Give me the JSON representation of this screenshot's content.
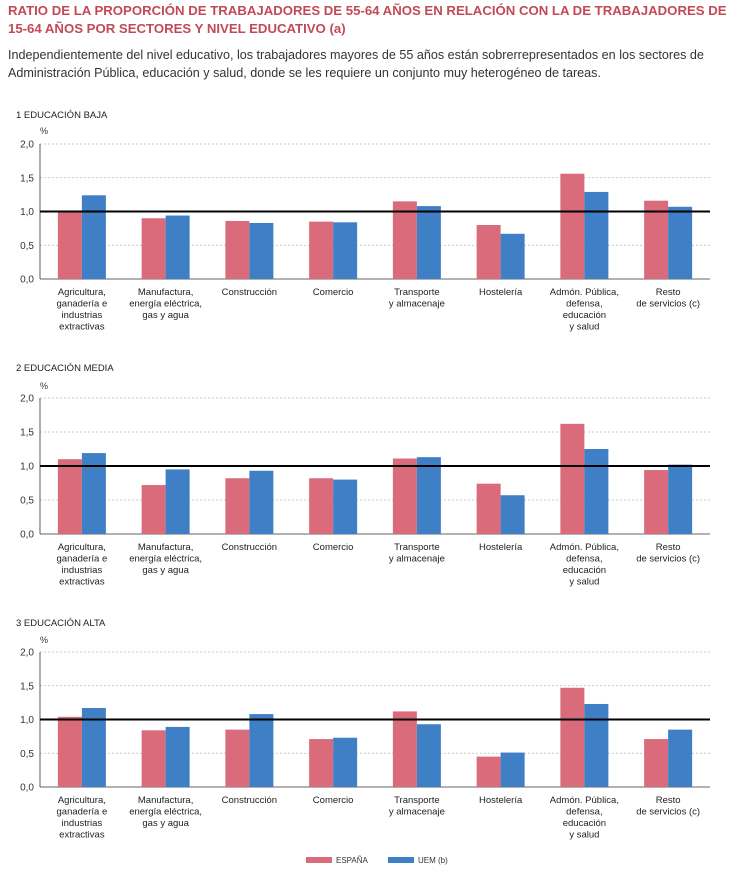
{
  "title": "RATIO DE LA PROPORCIÓN DE TRABAJADORES DE 55-64 AÑOS EN RELACIÓN CON LA DE TRABAJADORES DE 15-64 AÑOS POR SECTORES Y NIVEL EDUCATIVO (a)",
  "subtitle": "Independientemente del nivel educativo, los trabajadores mayores de 55 años están sobrerrepresentados en los sectores de Administración Pública, educación y salud, donde se les requiere un conjunto muy heterogéneo de tareas.",
  "colors": {
    "espana": "#d96b7b",
    "uem": "#3f7fc6",
    "grid": "#bbbbbb",
    "reference": "#000000"
  },
  "legend": [
    "ESPAÑA",
    "UEM (b)"
  ],
  "chart_data": [
    {
      "type": "bar",
      "title": "1  EDUCACIÓN BAJA",
      "ylabel": "%",
      "ylim": [
        0,
        2.0
      ],
      "yticks": [
        "0,0",
        "0,5",
        "1,0",
        "1,5",
        "2,0"
      ],
      "reference_line": 1.0,
      "categories": [
        [
          "Agricultura,",
          "ganadería e",
          "industrias",
          "extractivas"
        ],
        [
          "Manufactura,",
          "energía eléctrica,",
          "gas y agua"
        ],
        [
          "Construcción"
        ],
        [
          "Comercio"
        ],
        [
          "Transporte",
          "y almacenaje"
        ],
        [
          "Hostelería"
        ],
        [
          "Admón. Pública,",
          "defensa,",
          "educación",
          "y salud"
        ],
        [
          "Resto",
          "de servicios (c)"
        ]
      ],
      "series": [
        {
          "name": "ESPAÑA",
          "values": [
            1.0,
            0.9,
            0.86,
            0.85,
            1.15,
            0.8,
            1.56,
            1.16
          ]
        },
        {
          "name": "UEM (b)",
          "values": [
            1.24,
            0.94,
            0.83,
            0.84,
            1.08,
            0.67,
            1.29,
            1.07
          ]
        }
      ]
    },
    {
      "type": "bar",
      "title": "2  EDUCACIÓN MEDIA",
      "ylabel": "%",
      "ylim": [
        0,
        2.0
      ],
      "yticks": [
        "0,0",
        "0,5",
        "1,0",
        "1,5",
        "2,0"
      ],
      "reference_line": 1.0,
      "categories": [
        [
          "Agricultura,",
          "ganadería e",
          "industrias",
          "extractivas"
        ],
        [
          "Manufactura,",
          "energía eléctrica,",
          "gas y agua"
        ],
        [
          "Construcción"
        ],
        [
          "Comercio"
        ],
        [
          "Transporte",
          "y almacenaje"
        ],
        [
          "Hostelería"
        ],
        [
          "Admón. Pública,",
          "defensa,",
          "educación",
          "y salud"
        ],
        [
          "Resto",
          "de servicios (c)"
        ]
      ],
      "series": [
        {
          "name": "ESPAÑA",
          "values": [
            1.1,
            0.72,
            0.82,
            0.82,
            1.11,
            0.74,
            1.62,
            0.94
          ]
        },
        {
          "name": "UEM (b)",
          "values": [
            1.19,
            0.95,
            0.93,
            0.8,
            1.13,
            0.57,
            1.25,
            1.02
          ]
        }
      ]
    },
    {
      "type": "bar",
      "title": "3  EDUCACIÓN ALTA",
      "ylabel": "%",
      "ylim": [
        0,
        2.0
      ],
      "yticks": [
        "0,0",
        "0,5",
        "1,0",
        "1,5",
        "2,0"
      ],
      "reference_line": 1.0,
      "categories": [
        [
          "Agricultura,",
          "ganadería e",
          "industrias",
          "extractivas"
        ],
        [
          "Manufactura,",
          "energía eléctrica,",
          "gas y agua"
        ],
        [
          "Construcción"
        ],
        [
          "Comercio"
        ],
        [
          "Transporte",
          "y almacenaje"
        ],
        [
          "Hostelería"
        ],
        [
          "Admón. Pública,",
          "defensa,",
          "educación",
          "y salud"
        ],
        [
          "Resto",
          "de servicios (c)"
        ]
      ],
      "series": [
        {
          "name": "ESPAÑA",
          "values": [
            1.04,
            0.84,
            0.85,
            0.71,
            1.12,
            0.45,
            1.47,
            0.71
          ]
        },
        {
          "name": "UEM (b)",
          "values": [
            1.17,
            0.89,
            1.08,
            0.73,
            0.93,
            0.51,
            1.23,
            0.85
          ]
        }
      ]
    }
  ]
}
